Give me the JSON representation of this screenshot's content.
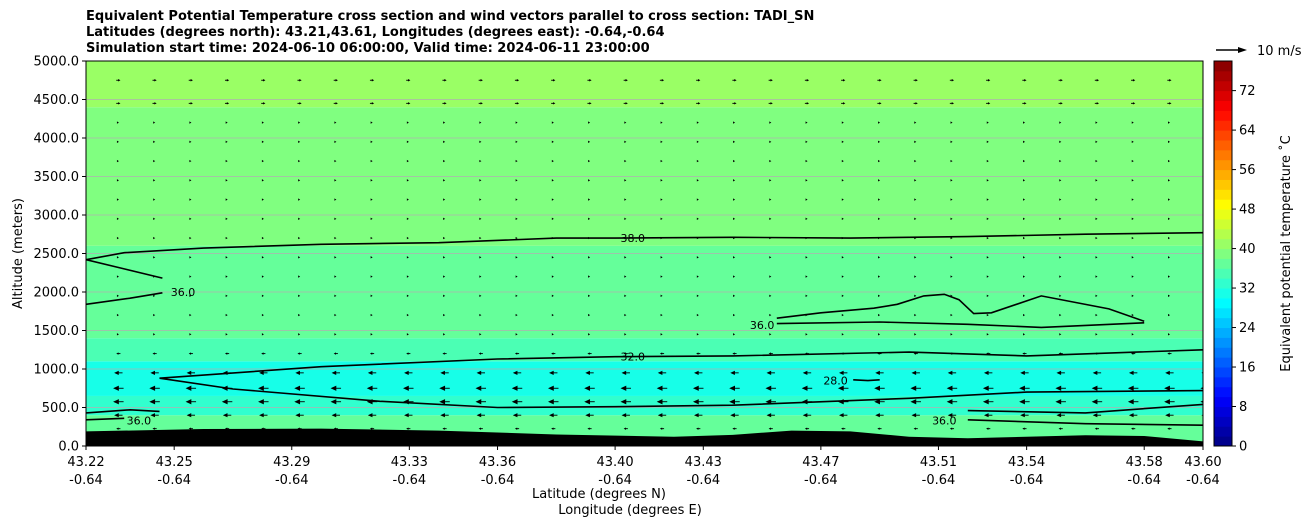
{
  "chart_data": {
    "type": "heatmap",
    "title_lines": [
      "Equivalent Potential Temperature cross section and wind vectors parallel to cross section: TADI_SN",
      "Latitudes (degrees north): 43.21,43.61, Longitudes (degrees east): -0.64,-0.64",
      "Simulation start time: 2024-06-10 06:00:00, Valid time: 2024-06-11 23:00:00"
    ],
    "ylabel": "Altitude (meters)",
    "xlabel_lines": [
      "Latitude (degrees N)",
      "Longitude (degrees E)"
    ],
    "ylim": [
      0,
      5000
    ],
    "xlim": [
      43.22,
      43.6
    ],
    "y_ticks": [
      0,
      500,
      1000,
      1500,
      2000,
      2500,
      3000,
      3500,
      4000,
      4500,
      5000
    ],
    "y_tick_labels": [
      "0.0",
      "500.0",
      "1000.0",
      "1500.0",
      "2000.0",
      "2500.0",
      "3000.0",
      "3500.0",
      "4000.0",
      "4500.0",
      "5000.0"
    ],
    "x_ticks": [
      {
        "lat": 43.22,
        "lat_label": "43.22",
        "lon_label": "-0.64"
      },
      {
        "lat": 43.25,
        "lat_label": "43.25",
        "lon_label": "-0.64"
      },
      {
        "lat": 43.29,
        "lat_label": "43.29",
        "lon_label": "-0.64"
      },
      {
        "lat": 43.33,
        "lat_label": "43.33",
        "lon_label": "-0.64"
      },
      {
        "lat": 43.36,
        "lat_label": "43.36",
        "lon_label": "-0.64"
      },
      {
        "lat": 43.4,
        "lat_label": "43.40",
        "lon_label": "-0.64"
      },
      {
        "lat": 43.43,
        "lat_label": "43.43",
        "lon_label": "-0.64"
      },
      {
        "lat": 43.47,
        "lat_label": "43.47",
        "lon_label": "-0.64"
      },
      {
        "lat": 43.51,
        "lat_label": "43.51",
        "lon_label": "-0.64"
      },
      {
        "lat": 43.54,
        "lat_label": "43.54",
        "lon_label": "-0.64"
      },
      {
        "lat": 43.58,
        "lat_label": "43.58",
        "lon_label": "-0.64"
      },
      {
        "lat": 43.6,
        "lat_label": "43.60",
        "lon_label": "-0.64"
      }
    ],
    "grid": "horizontal",
    "colorbar": {
      "label": "Equivalent potential temperature $^\\circ$C",
      "label_display": "Equivalent potential temperature ˚C",
      "min": 0,
      "max": 78,
      "step": 2,
      "ticks": [
        0,
        8,
        16,
        24,
        32,
        40,
        48,
        56,
        64,
        72
      ],
      "tick_labels": [
        "0",
        "8",
        "16",
        "24",
        "32",
        "40",
        "48",
        "56",
        "64",
        "72"
      ],
      "colormap": "jet"
    },
    "field_layers": [
      {
        "bottom": 0,
        "top": 400,
        "value": 37
      },
      {
        "bottom": 400,
        "top": 650,
        "value": 33
      },
      {
        "bottom": 650,
        "top": 1100,
        "value": 31
      },
      {
        "bottom": 1100,
        "top": 1400,
        "value": 35
      },
      {
        "bottom": 1400,
        "top": 2600,
        "value": 37
      },
      {
        "bottom": 2600,
        "top": 4400,
        "value": 39
      },
      {
        "bottom": 4400,
        "top": 5000,
        "value": 41
      }
    ],
    "terrain": {
      "color": "#000000",
      "lat": [
        43.22,
        43.26,
        43.3,
        43.34,
        43.38,
        43.42,
        43.44,
        43.46,
        43.48,
        43.5,
        43.52,
        43.56,
        43.58,
        43.6
      ],
      "alt": [
        190,
        220,
        225,
        200,
        150,
        120,
        145,
        200,
        190,
        120,
        100,
        140,
        130,
        60
      ]
    },
    "contours": [
      {
        "level": "38.0",
        "lat": [
          43.22,
          43.233,
          43.26,
          43.3,
          43.34,
          43.38,
          43.4,
          43.44,
          43.48,
          43.52,
          43.56,
          43.6
        ],
        "alt": [
          2420,
          2510,
          2570,
          2620,
          2640,
          2700,
          2700,
          2710,
          2700,
          2720,
          2750,
          2770
        ],
        "label_at": {
          "lat": 43.406,
          "alt": 2700
        }
      },
      {
        "level": "36.0",
        "lat": [
          43.22,
          43.233,
          43.246
        ],
        "alt": [
          2420,
          2300,
          2180
        ],
        "label_at": {
          "lat": 43.253,
          "alt": 2000
        }
      },
      {
        "level": "36.0",
        "lat": [
          43.22,
          43.235,
          43.246
        ],
        "alt": [
          1840,
          1920,
          1990
        ],
        "label_at": null
      },
      {
        "level": "36.0",
        "lat": [
          43.455,
          43.47,
          43.488,
          43.496,
          43.505,
          43.512,
          43.517,
          43.522,
          43.528,
          43.545,
          43.568,
          43.58
        ],
        "alt": [
          1660,
          1730,
          1790,
          1840,
          1950,
          1970,
          1900,
          1720,
          1730,
          1950,
          1780,
          1620
        ],
        "label_at": {
          "lat": 43.45,
          "alt": 1570
        }
      },
      {
        "level": "36.0",
        "lat": [
          43.455,
          43.49,
          43.52,
          43.545,
          43.58
        ],
        "alt": [
          1590,
          1610,
          1580,
          1540,
          1600
        ],
        "label_at": null
      },
      {
        "level": "32.0",
        "lat": [
          43.245,
          43.3,
          43.36,
          43.4,
          43.44,
          43.5,
          43.54,
          43.6
        ],
        "alt": [
          880,
          1030,
          1130,
          1160,
          1170,
          1220,
          1170,
          1250
        ],
        "label_at": {
          "lat": 43.406,
          "alt": 1160
        }
      },
      {
        "level": "32.0",
        "lat": [
          43.245,
          43.27,
          43.32,
          43.36,
          43.4,
          43.44,
          43.5,
          43.54,
          43.6
        ],
        "alt": [
          880,
          740,
          580,
          500,
          510,
          530,
          620,
          700,
          720
        ],
        "label_at": null
      },
      {
        "level": "28.0",
        "lat": [
          43.481,
          43.486,
          43.49
        ],
        "alt": [
          860,
          850,
          860
        ],
        "label_at": {
          "lat": 43.475,
          "alt": 850
        }
      },
      {
        "level": "36.0",
        "lat": [
          43.22,
          43.235,
          43.245
        ],
        "alt": [
          430,
          470,
          450
        ],
        "label_at": {
          "lat": 43.238,
          "alt": 330
        }
      },
      {
        "level": "36.0",
        "lat": [
          43.22,
          43.233
        ],
        "alt": [
          340,
          360
        ],
        "label_at": null
      },
      {
        "level": "36.0",
        "lat": [
          43.52,
          43.56,
          43.6
        ],
        "alt": [
          460,
          430,
          540
        ],
        "label_at": {
          "lat": 43.512,
          "alt": 330
        }
      },
      {
        "level": "36.0",
        "lat": [
          43.52,
          43.56,
          43.6
        ],
        "alt": [
          340,
          290,
          270
        ],
        "label_at": null
      }
    ],
    "wind": {
      "reference_label": "10 m/s",
      "reference_speed_ms": 10,
      "columns": 32,
      "lat_start": 43.231,
      "lat_step": 0.01233,
      "levels": [
        {
          "alt": 225,
          "dir": -1,
          "speed": 2
        },
        {
          "alt": 400,
          "dir": -1,
          "speed": 4
        },
        {
          "alt": 575,
          "dir": -1,
          "speed": 5
        },
        {
          "alt": 750,
          "dir": -1,
          "speed": 5
        },
        {
          "alt": 950,
          "dir": -1,
          "speed": 4
        },
        {
          "alt": 1200,
          "dir": -1,
          "speed": 2
        },
        {
          "alt": 1450,
          "dir": 1,
          "speed": 0.3
        },
        {
          "alt": 1700,
          "dir": 1,
          "speed": 0.3
        },
        {
          "alt": 1950,
          "dir": 1,
          "speed": 0.3
        },
        {
          "alt": 2200,
          "dir": 1,
          "speed": 0.3
        },
        {
          "alt": 2450,
          "dir": 1,
          "speed": 0.3
        },
        {
          "alt": 2700,
          "dir": 1,
          "speed": 0.3
        },
        {
          "alt": 2950,
          "dir": 1,
          "speed": 0.3
        },
        {
          "alt": 3200,
          "dir": 1,
          "speed": 0.3
        },
        {
          "alt": 3450,
          "dir": 1,
          "speed": 0.3
        },
        {
          "alt": 3700,
          "dir": 1,
          "speed": 0.3
        },
        {
          "alt": 3950,
          "dir": 1,
          "speed": 0.3
        },
        {
          "alt": 4200,
          "dir": 1,
          "speed": 0.5
        },
        {
          "alt": 4450,
          "dir": 1,
          "speed": 2
        },
        {
          "alt": 4750,
          "dir": 1,
          "speed": 2
        }
      ]
    }
  }
}
